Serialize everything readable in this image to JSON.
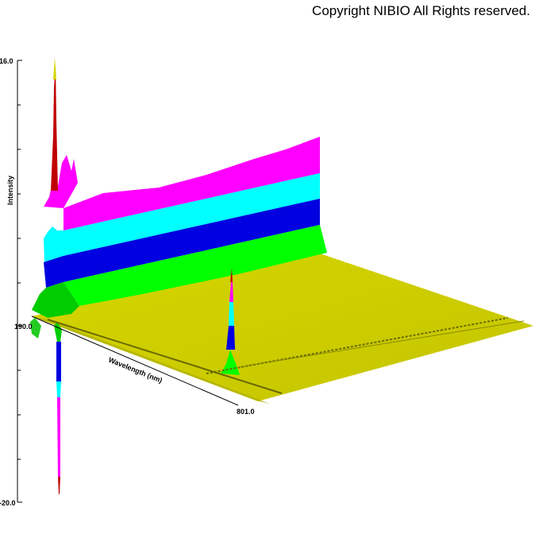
{
  "copyright": "Copyright NIBIO All Rights reserved.",
  "chart_data": {
    "type": "area",
    "view": "3d-surface",
    "ylabel": "Intensity",
    "xlabel": "Wavelength (nm)",
    "z_axis": {
      "ticks": [
        "16.0",
        "-20.0"
      ]
    },
    "x_axis": {
      "ticks": [
        "190.0",
        "801.0"
      ]
    },
    "color_bands": [
      "#ff00ff",
      "#00ffff",
      "#0000e0",
      "#00ff00",
      "#d4d400"
    ]
  }
}
